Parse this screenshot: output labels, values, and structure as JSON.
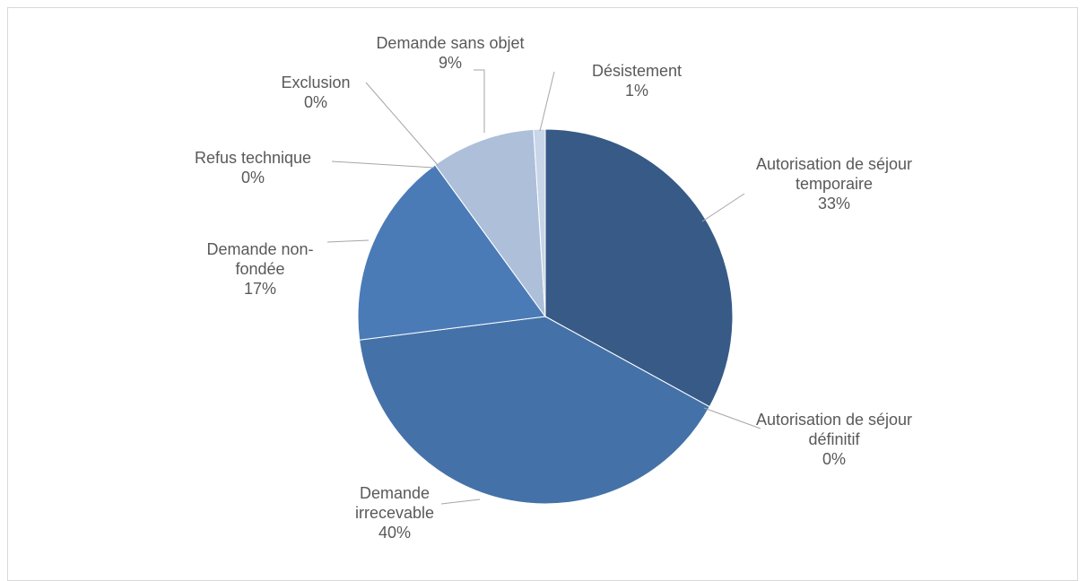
{
  "chart_data": {
    "type": "pie",
    "categories": [
      "Autorisation de séjour temporaire",
      "Autorisation de séjour définitif",
      "Demande irrecevable",
      "Demande non-fondée",
      "Refus technique",
      "Exclusion",
      "Demande sans objet",
      "Désistement"
    ],
    "values": [
      33,
      0,
      40,
      17,
      0,
      0,
      9,
      1
    ],
    "value_labels": [
      "33%",
      "0%",
      "40%",
      "17%",
      "0%",
      "0%",
      "9%",
      "1%"
    ],
    "colors": [
      "#375a87",
      "#3b6192",
      "#4472a8",
      "#4a7bb7",
      "#8aa3c8",
      "#9db1d1",
      "#adbfd9",
      "#c9d5e8"
    ]
  }
}
